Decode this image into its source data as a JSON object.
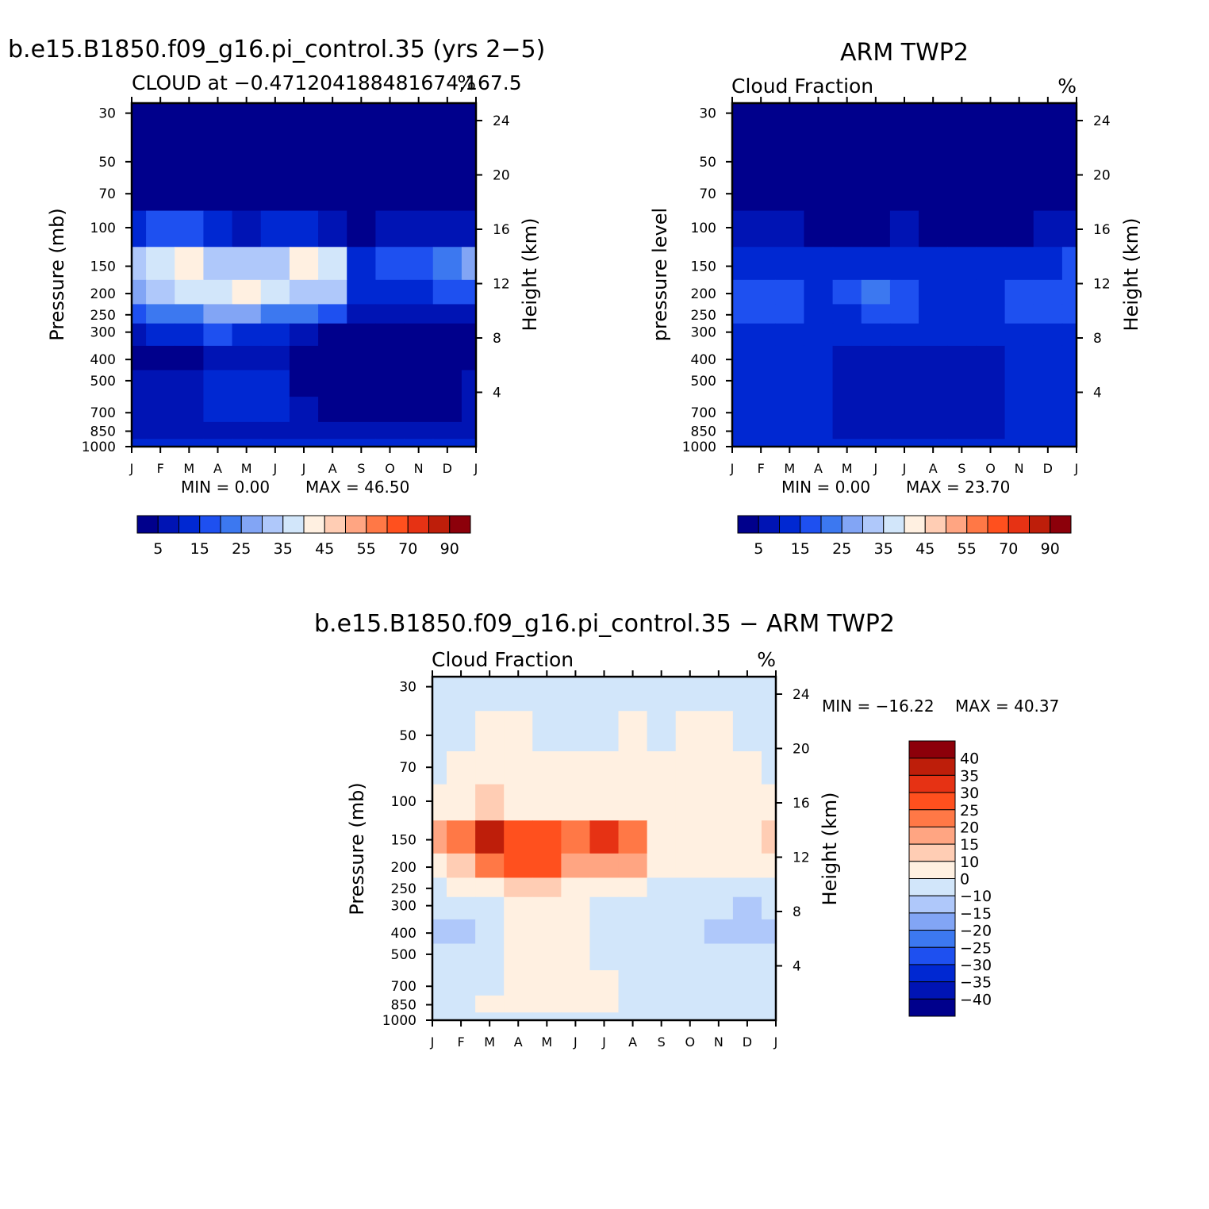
{
  "colors": {
    "abs_levels": [
      "#00008c",
      "#0014b4",
      "#0028d2",
      "#1e50f0",
      "#3c78f0",
      "#82a5f5",
      "#afc8fa",
      "#d2e6fa",
      "#fff0e1",
      "#ffcdb4",
      "#ffa582",
      "#ff7846",
      "#ff501e",
      "#e63214",
      "#be1e0a",
      "#8c000a"
    ],
    "diff_levels": [
      "#00008c",
      "#0014b4",
      "#0028d2",
      "#1e50f0",
      "#3c78f0",
      "#82a5f5",
      "#afc8fa",
      "#d2e6fa",
      "#fff0e1",
      "#ffcdb4",
      "#ffa582",
      "#ff7846",
      "#ff501e",
      "#e63214",
      "#be1e0a",
      "#8c000a"
    ]
  },
  "chart_data": [
    {
      "type": "heatmap",
      "title": "b.e15.B1850.f09_g16.pi_control.35 (yrs 2−5)",
      "subtitle_left": "CLOUD at −0.471204188481674,167.5",
      "subtitle_right": "%",
      "ylabel": "Pressure (mb)",
      "ylabel_right": "Height (km)",
      "x_ticks": [
        "J",
        "F",
        "M",
        "A",
        "M",
        "J",
        "J",
        "A",
        "S",
        "O",
        "N",
        "D",
        "J"
      ],
      "y_ticks": [
        "30",
        "50",
        "70",
        "100",
        "150",
        "200",
        "250",
        "300",
        "400",
        "500",
        "700",
        "850",
        "1000"
      ],
      "y_ticks_right": [
        "24",
        "20",
        "16",
        "12",
        "8",
        "4"
      ],
      "min_text": "MIN =    0.00",
      "max_text": "MAX =   46.50",
      "colorbar_labels": [
        "5",
        "15",
        "25",
        "35",
        "45",
        "55",
        "70",
        "90"
      ],
      "rows_pressure": [
        30,
        50,
        70,
        100,
        150,
        200,
        250,
        300,
        400,
        500,
        700,
        850,
        1000
      ],
      "values": [
        [
          1,
          1,
          1,
          1,
          1,
          1,
          1,
          1,
          1,
          1,
          1,
          1,
          1
        ],
        [
          1,
          1,
          1,
          1,
          1,
          1,
          1,
          1,
          1,
          1,
          1,
          1,
          1
        ],
        [
          2,
          2,
          2,
          1,
          1,
          1,
          1,
          1,
          1,
          1,
          1,
          1,
          1
        ],
        [
          14,
          16,
          18,
          12,
          9,
          10,
          11,
          9,
          4,
          7,
          8,
          7,
          9
        ],
        [
          30,
          36,
          44,
          33,
          31,
          34,
          43,
          36,
          14,
          18,
          18,
          23,
          29
        ],
        [
          26,
          31,
          37,
          38,
          40,
          36,
          34,
          30,
          11,
          13,
          14,
          15,
          19
        ],
        [
          16,
          20,
          24,
          26,
          25,
          22,
          21,
          16,
          8,
          8,
          8,
          8,
          8
        ],
        [
          8,
          10,
          11,
          16,
          14,
          10,
          6,
          4,
          3,
          3,
          3,
          3,
          3
        ],
        [
          3,
          3,
          3,
          7,
          8,
          5,
          3,
          2,
          2,
          2,
          2,
          2,
          3
        ],
        [
          5,
          6,
          8,
          12,
          14,
          10,
          4,
          2,
          2,
          2,
          2,
          2,
          5
        ],
        [
          7,
          8,
          8,
          11,
          12,
          11,
          6,
          3,
          2,
          2,
          2,
          2,
          6
        ],
        [
          8,
          8,
          8,
          8,
          8,
          8,
          7,
          6,
          6,
          6,
          6,
          6,
          8
        ],
        [
          10,
          10,
          10,
          10,
          10,
          10,
          10,
          10,
          10,
          10,
          10,
          10,
          10
        ]
      ]
    },
    {
      "type": "heatmap",
      "title": "ARM TWP2",
      "subtitle_left": "Cloud Fraction",
      "subtitle_right": "%",
      "ylabel": "pressure level",
      "ylabel_right": "Height (km)",
      "x_ticks": [
        "J",
        "F",
        "M",
        "A",
        "M",
        "J",
        "J",
        "A",
        "S",
        "O",
        "N",
        "D",
        "J"
      ],
      "y_ticks": [
        "30",
        "50",
        "70",
        "100",
        "150",
        "200",
        "250",
        "300",
        "400",
        "500",
        "700",
        "850",
        "1000"
      ],
      "y_ticks_right": [
        "24",
        "20",
        "16",
        "12",
        "8",
        "4"
      ],
      "min_text": "MIN =    0.00",
      "max_text": "MAX =   23.70",
      "colorbar_labels": [
        "5",
        "15",
        "25",
        "35",
        "45",
        "55",
        "70",
        "90"
      ],
      "rows_pressure": [
        30,
        50,
        70,
        100,
        150,
        200,
        250,
        300,
        400,
        500,
        700,
        850,
        1000
      ],
      "values": [
        [
          1,
          1,
          1,
          1,
          1,
          1,
          1,
          1,
          1,
          1,
          1,
          1,
          1
        ],
        [
          1,
          1,
          1,
          1,
          1,
          1,
          1,
          1,
          1,
          1,
          1,
          1,
          1
        ],
        [
          3,
          1,
          1,
          1,
          1,
          1,
          1,
          1,
          1,
          1,
          1,
          1,
          2
        ],
        [
          9,
          8,
          6,
          4,
          3,
          4,
          5,
          4,
          4,
          4,
          4,
          6,
          9
        ],
        [
          14,
          14,
          13,
          10,
          12,
          13,
          12,
          12,
          10,
          12,
          12,
          14,
          15
        ],
        [
          17,
          18,
          16,
          13,
          15,
          20,
          16,
          13,
          13,
          13,
          16,
          19,
          19
        ],
        [
          18,
          18,
          15,
          13,
          14,
          18,
          15,
          13,
          14,
          13,
          16,
          19,
          19
        ],
        [
          13,
          14,
          12,
          13,
          10,
          10,
          10,
          10,
          10,
          12,
          12,
          13,
          13
        ],
        [
          13,
          14,
          12,
          13,
          8,
          8,
          9,
          9,
          6,
          9,
          12,
          13,
          13
        ],
        [
          12,
          13,
          13,
          12,
          9,
          9,
          9,
          9,
          6,
          8,
          13,
          13,
          12
        ],
        [
          11,
          11,
          10,
          11,
          6,
          7,
          6,
          9,
          5,
          6,
          11,
          11,
          11
        ],
        [
          12,
          11,
          11,
          11,
          9,
          9,
          9,
          9,
          9,
          9,
          10,
          11,
          12
        ],
        [
          13,
          13,
          13,
          13,
          13,
          13,
          13,
          13,
          13,
          13,
          13,
          13,
          13
        ]
      ]
    },
    {
      "type": "heatmap",
      "title": "b.e15.B1850.f09_g16.pi_control.35 − ARM TWP2",
      "subtitle_left": "Cloud Fraction",
      "subtitle_right": "%",
      "ylabel": "Pressure (mb)",
      "ylabel_right": "Height (km)",
      "x_ticks": [
        "J",
        "F",
        "M",
        "A",
        "M",
        "J",
        "J",
        "A",
        "S",
        "O",
        "N",
        "D",
        "J"
      ],
      "y_ticks": [
        "30",
        "50",
        "70",
        "100",
        "150",
        "200",
        "250",
        "300",
        "400",
        "500",
        "700",
        "850",
        "1000"
      ],
      "y_ticks_right": [
        "24",
        "20",
        "16",
        "12",
        "8",
        "4"
      ],
      "min_text": "MIN = −16.22",
      "max_text": "MAX =   40.37",
      "colorbar_labels": [
        "40",
        "35",
        "30",
        "25",
        "20",
        "15",
        "10",
        "0",
        "−10",
        "−15",
        "−20",
        "−25",
        "−30",
        "−35",
        "−40"
      ],
      "rows_pressure": [
        30,
        50,
        70,
        100,
        150,
        200,
        250,
        300,
        400,
        500,
        700,
        850,
        1000
      ],
      "values": [
        [
          -2,
          -2,
          -2,
          -2,
          -2,
          -2,
          -2,
          -2,
          -2,
          -2,
          -2,
          -2,
          -2
        ],
        [
          -2,
          -2,
          2,
          2,
          -2,
          -2,
          -2,
          2,
          -2,
          2,
          2,
          -2,
          -2
        ],
        [
          -2,
          2,
          2,
          2,
          2,
          2,
          2,
          2,
          2,
          2,
          2,
          2,
          -2
        ],
        [
          5,
          8,
          14,
          9,
          6,
          6,
          7,
          5,
          1,
          3,
          3,
          1,
          1
        ],
        [
          16,
          23,
          37,
          27,
          26,
          22,
          34,
          24,
          6,
          7,
          6,
          9,
          14
        ],
        [
          6,
          12,
          22,
          25,
          26,
          15,
          18,
          15,
          1,
          2,
          1,
          0,
          1
        ],
        [
          -3,
          1,
          9,
          13,
          12,
          4,
          5,
          3,
          -4,
          -4,
          -6,
          -10,
          -10
        ],
        [
          -8,
          -10,
          -3,
          4,
          5,
          1,
          -2,
          -4,
          -8,
          -7,
          -10,
          -12,
          -10
        ],
        [
          -11,
          -13,
          -6,
          4,
          5,
          1,
          -3,
          -4,
          -2,
          -4,
          -11,
          -12,
          -12
        ],
        [
          -9,
          -8,
          -6,
          1,
          6,
          1,
          -3,
          -3,
          -3,
          -3,
          -3,
          -5,
          -6
        ],
        [
          -5,
          -6,
          -4,
          3,
          5,
          4,
          1,
          -3,
          -3,
          -3,
          -3,
          -4,
          -4
        ],
        [
          -3,
          -3,
          3,
          3,
          3,
          3,
          3,
          -3,
          -3,
          -3,
          -3,
          -3,
          -3
        ],
        [
          -2,
          -2,
          -2,
          -2,
          -2,
          -2,
          -2,
          -2,
          -2,
          -2,
          -2,
          -2,
          -2
        ]
      ]
    }
  ]
}
